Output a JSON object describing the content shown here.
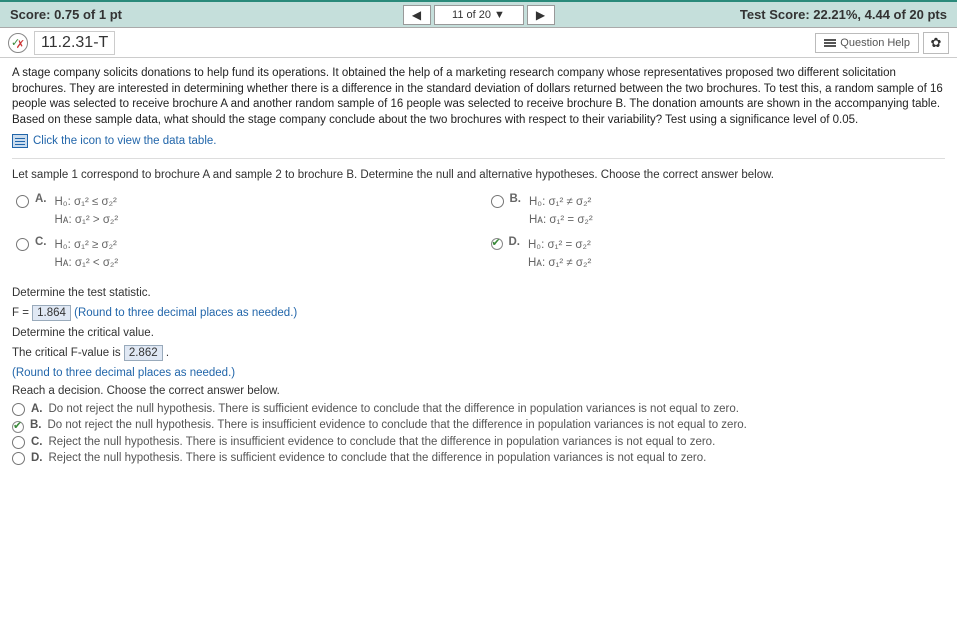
{
  "topbar": {
    "score_label": "Score: 0.75 of 1 pt",
    "nav_position": "11 of 20 ▼",
    "test_score": "Test Score: 22.21%, 4.44 of 20 pts"
  },
  "qbar": {
    "question_num": "11.2.31-T",
    "help_label": "Question Help"
  },
  "problem_text": "A stage company solicits donations to help fund its operations. It obtained the help of a marketing research company whose representatives proposed two different solicitation brochures. They are interested in determining whether there is a difference in the standard deviation of dollars returned between the two brochures. To test this, a random sample of 16 people was selected to receive brochure A and another random sample of 16 people was selected to receive brochure B. The donation amounts are shown in the accompanying table. Based on these sample data, what should the stage company conclude about the two brochures with respect to their variability? Test using a significance level of 0.05.",
  "data_link": "Click the icon to view the data table.",
  "hyp_instr": "Let sample 1 correspond to brochure A and sample 2 to brochure B. Determine the null and alternative hypotheses. Choose the correct answer below.",
  "hyp_opts": {
    "A": {
      "h0": "H₀: σ₁² ≤ σ₂²",
      "ha": "Hᴀ: σ₁² > σ₂²"
    },
    "B": {
      "h0": "H₀: σ₁² ≠ σ₂²",
      "ha": "Hᴀ: σ₁² = σ₂²"
    },
    "C": {
      "h0": "H₀: σ₁² ≥ σ₂²",
      "ha": "Hᴀ: σ₁² < σ₂²"
    },
    "D": {
      "h0": "H₀: σ₁² = σ₂²",
      "ha": "Hᴀ: σ₁² ≠ σ₂²"
    }
  },
  "selected_hyp": "D",
  "test_stat": {
    "label": "Determine the test statistic.",
    "prefix": "F = ",
    "value": "1.864",
    "hint": "(Round to three decimal places as needed.)"
  },
  "crit_val": {
    "label": "Determine the critical value.",
    "sentence_pre": "The critical F-value is ",
    "value": "2.862",
    "sentence_post": " .",
    "hint": "(Round to three decimal places as needed.)"
  },
  "decision": {
    "label": "Reach a decision. Choose the correct answer below.",
    "opts": {
      "A": "Do not reject the null hypothesis. There is sufficient evidence to conclude that the difference in population variances is not equal to zero.",
      "B": "Do not reject the null hypothesis. There is insufficient evidence to conclude that the difference in population variances is not equal to zero.",
      "C": "Reject the null hypothesis. There is insufficient evidence to conclude that the difference in population variances is not equal to zero.",
      "D": "Reject the null hypothesis. There is sufficient evidence to conclude that the difference in population variances is not equal to zero."
    },
    "selected": "B"
  },
  "colors": {
    "accent": "#2266aa",
    "topbar_bg": "#c5dfdb"
  }
}
